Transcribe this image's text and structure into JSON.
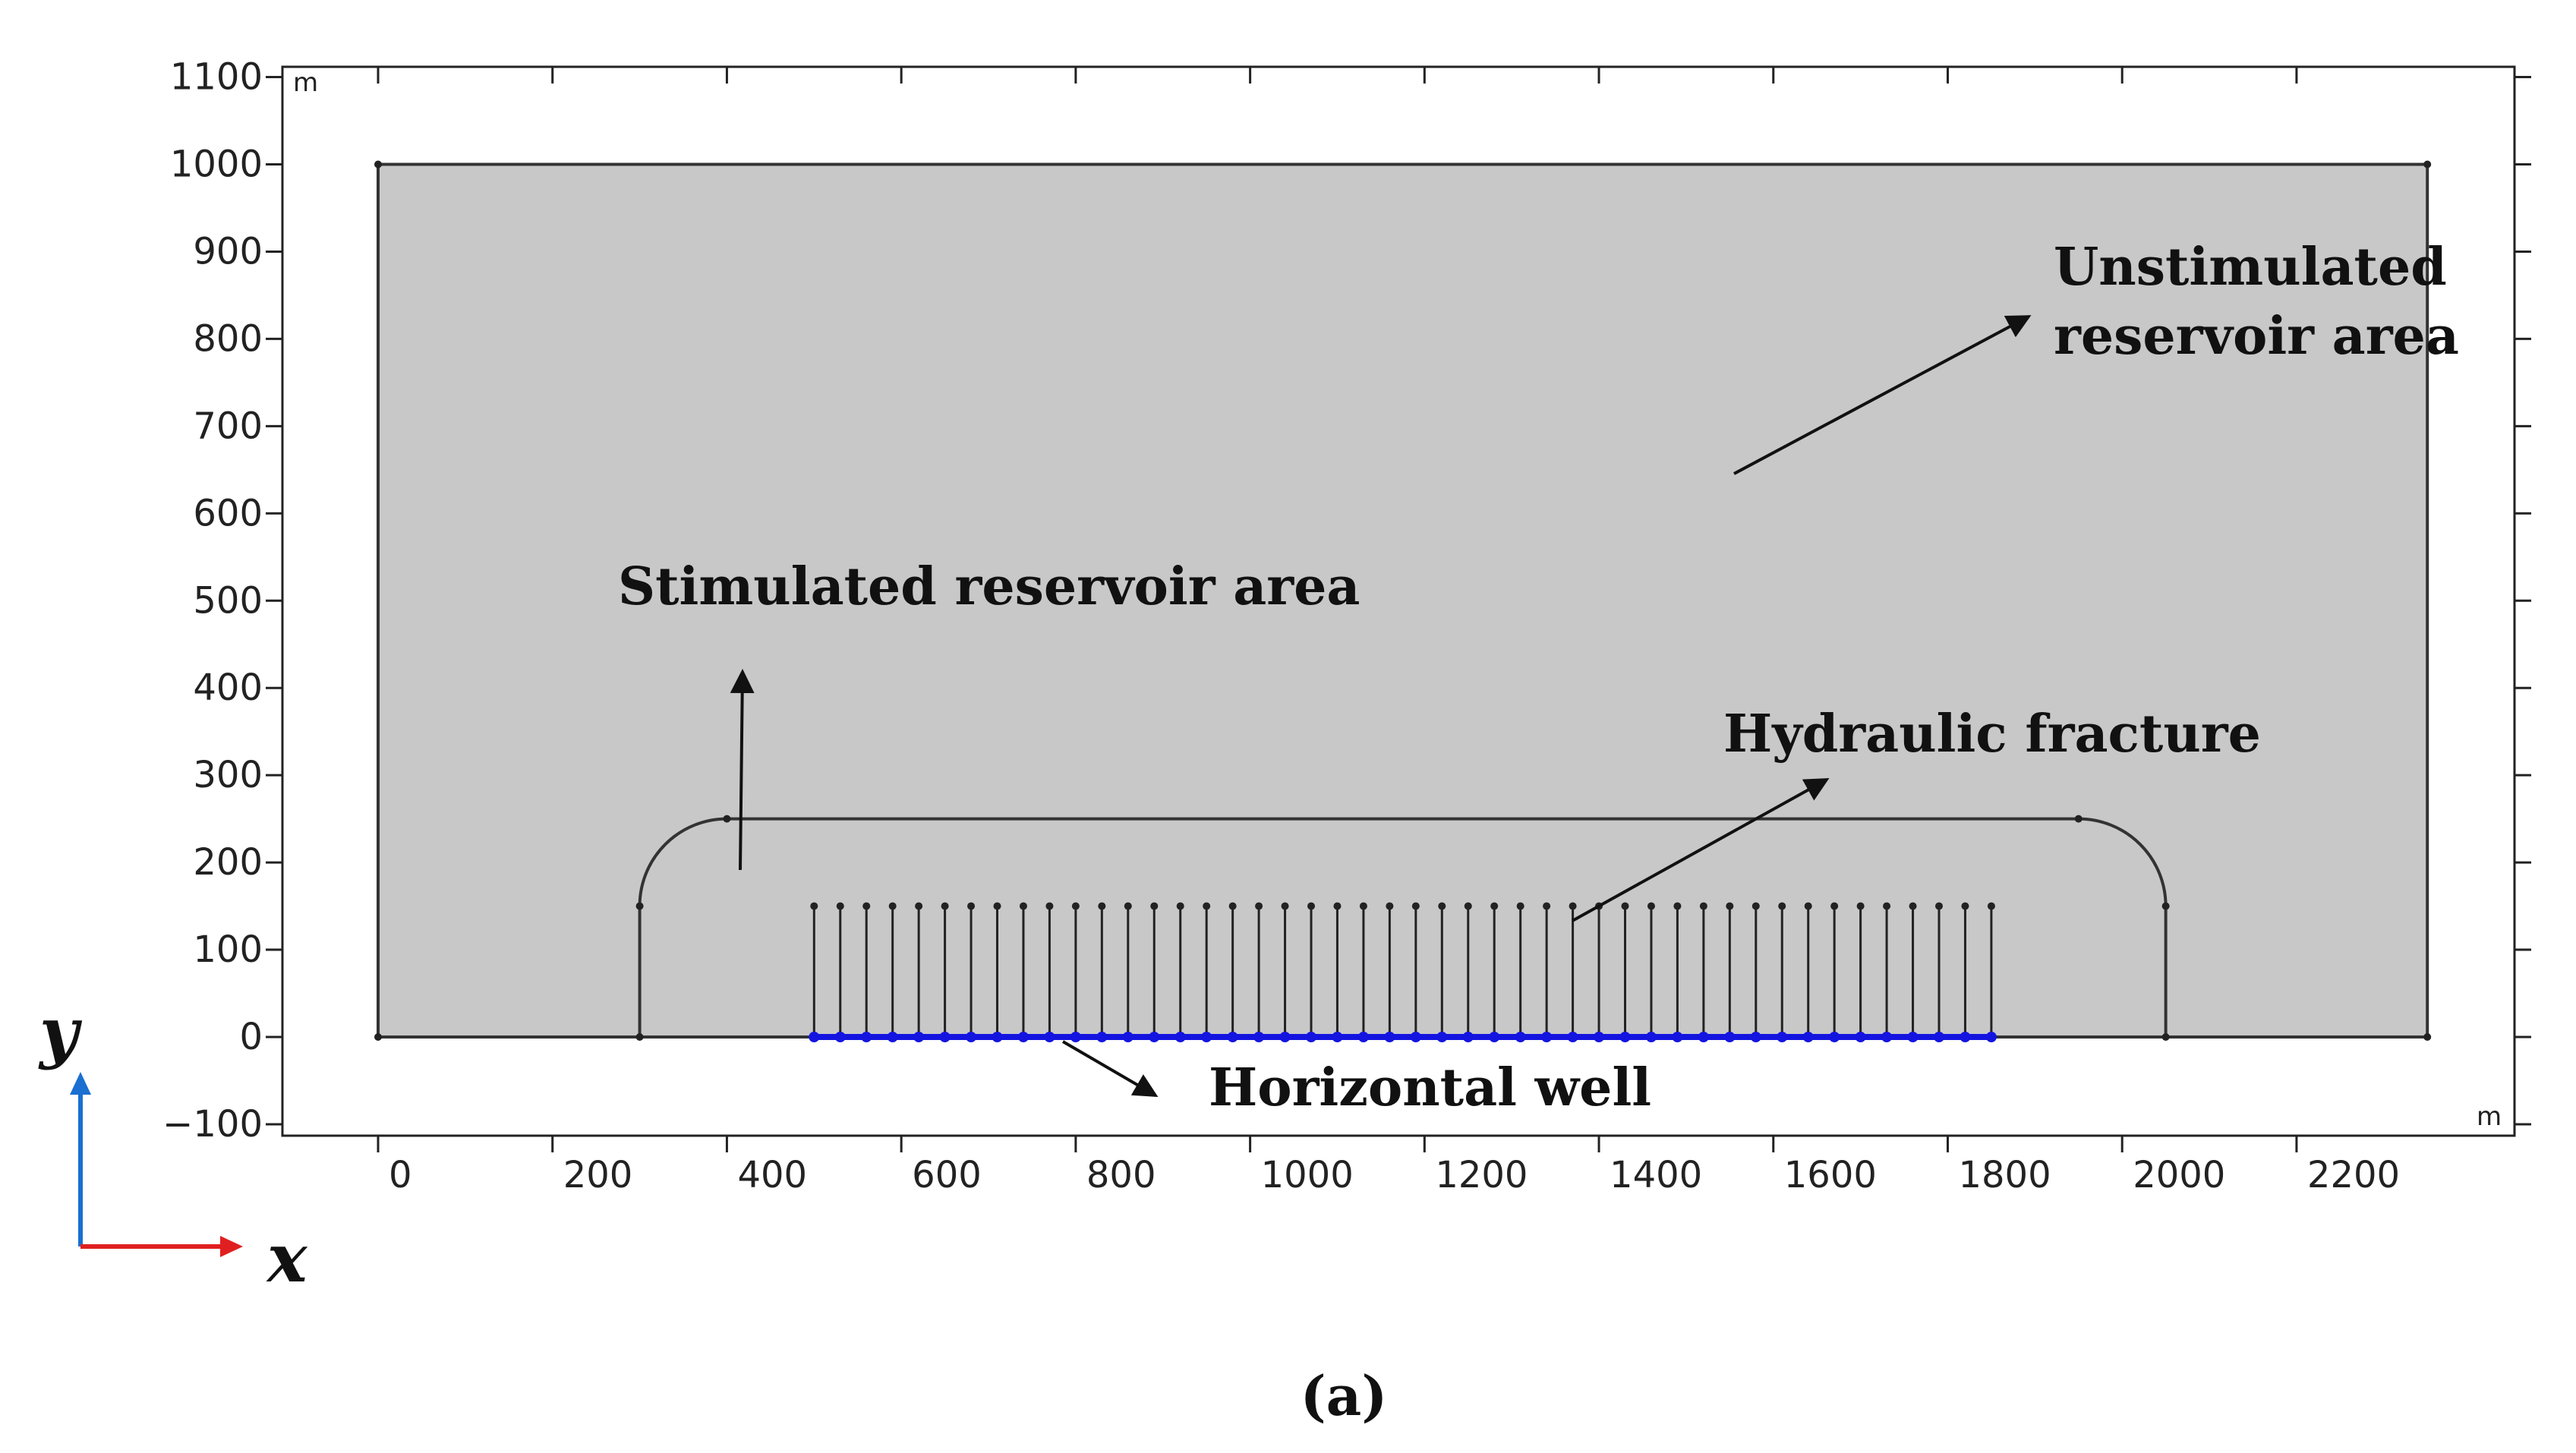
{
  "figure": {
    "unit_top": "m",
    "unit_bottom": "m",
    "x_ticks": [
      "0",
      "200",
      "400",
      "600",
      "800",
      "1000",
      "1200",
      "1400",
      "1600",
      "1800",
      "2000",
      "2200"
    ],
    "y_ticks": [
      "1100",
      "1000",
      "900",
      "800",
      "700",
      "600",
      "500",
      "400",
      "300",
      "200",
      "100",
      "0",
      "−100"
    ],
    "annotations": {
      "unstimulated_line1": "Unstimulated",
      "unstimulated_line2": "reservoir area",
      "stimulated": "Stimulated reservoir area",
      "hydraulic_fracture": "Hydraulic fracture",
      "horizontal_well": "Horizontal well"
    },
    "axis_indicator": {
      "x_letter": "x",
      "y_letter": "y",
      "x_color": "#e02020",
      "y_color": "#1a6fd0"
    },
    "caption": "(a)",
    "colors": {
      "reservoir_fill": "#c8c8c8",
      "well": "#1414e0",
      "lines": "#222222"
    },
    "geometry_data_units": {
      "reservoir": {
        "x": [
          0,
          2350
        ],
        "y": [
          0,
          1000
        ]
      },
      "stimulated_region": {
        "x": [
          300,
          2050
        ],
        "y_top": 250,
        "corner_radius": 100
      },
      "fractures": {
        "count": 46,
        "x_start": 500,
        "x_end": 1850,
        "length": 150
      }
    }
  }
}
